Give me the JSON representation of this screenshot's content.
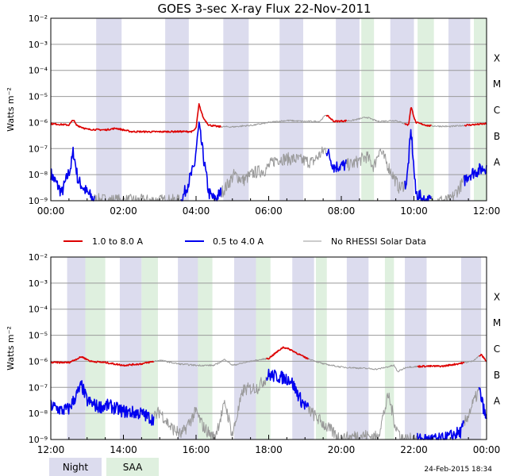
{
  "chart_data": {
    "type": "line",
    "title": "GOES 3-sec X-ray Flux   22-Nov-2011",
    "ylabel": "Watts m⁻²",
    "y_scale": "log",
    "ylim": [
      1e-09,
      0.01
    ],
    "y_ticks": [
      {
        "value": 0.01,
        "label": "10⁻²"
      },
      {
        "value": 0.001,
        "label": "10⁻³"
      },
      {
        "value": 0.0001,
        "label": "10⁻⁴"
      },
      {
        "value": 1e-05,
        "label": "10⁻⁵"
      },
      {
        "value": 1e-06,
        "label": "10⁻⁶"
      },
      {
        "value": 1e-07,
        "label": "10⁻⁷"
      },
      {
        "value": 1e-08,
        "label": "10⁻⁸"
      },
      {
        "value": 1e-09,
        "label": "10⁻⁹"
      }
    ],
    "flare_classes": [
      {
        "value": 0.0001,
        "label": "X"
      },
      {
        "value": 1e-05,
        "label": "M"
      },
      {
        "value": 1e-06,
        "label": "C"
      },
      {
        "value": 1e-07,
        "label": "B"
      },
      {
        "value": 1e-08,
        "label": "A"
      }
    ],
    "legend": [
      {
        "name": "1.0 to 8.0 A",
        "color": "#dd0000"
      },
      {
        "name": "0.5 to 4.0 A",
        "color": "#0000ee"
      },
      {
        "name": "No RHESSI Solar Data",
        "color": "#999999"
      }
    ],
    "shade_legend": [
      {
        "name": "Night",
        "color": "#dcdcee"
      },
      {
        "name": "SAA",
        "color": "#dff0df"
      }
    ],
    "timestamp": "24-Feb-2015 18:34",
    "panels": [
      {
        "xlim": [
          0,
          12
        ],
        "x_ticks": [
          "00:00",
          "02:00",
          "04:00",
          "06:00",
          "08:00",
          "10:00",
          "12:00"
        ],
        "night": [
          [
            1.25,
            1.95
          ],
          [
            3.15,
            3.8
          ],
          [
            4.75,
            5.45
          ],
          [
            6.3,
            6.95
          ],
          [
            7.85,
            8.5
          ],
          [
            9.35,
            10.0
          ],
          [
            10.95,
            11.55
          ]
        ],
        "saa": [
          [
            8.55,
            8.9
          ],
          [
            10.1,
            10.55
          ],
          [
            11.65,
            12.0
          ]
        ],
        "long_series": {
          "name": "1.0 to 8.0 A",
          "points": [
            [
              0,
              9e-07
            ],
            [
              0.5,
              8e-07
            ],
            [
              0.62,
              1.3e-06
            ],
            [
              0.7,
              8e-07
            ],
            [
              1.0,
              5.5e-07
            ],
            [
              1.5,
              5.2e-07
            ],
            [
              1.8,
              6e-07
            ],
            [
              2.2,
              4.5e-07
            ],
            [
              2.8,
              4.4e-07
            ],
            [
              3.4,
              4.5e-07
            ],
            [
              3.9,
              4.5e-07
            ],
            [
              4.0,
              6e-07
            ],
            [
              4.08,
              5e-06
            ],
            [
              4.2,
              1.5e-06
            ],
            [
              4.35,
              8e-07
            ],
            [
              4.6,
              7e-07
            ],
            [
              5.0,
              6.8e-07
            ],
            [
              5.6,
              8e-07
            ],
            [
              6.0,
              1e-06
            ],
            [
              6.5,
              1.2e-06
            ],
            [
              7.0,
              1.1e-06
            ],
            [
              7.4,
              1.1e-06
            ],
            [
              7.58,
              2e-06
            ],
            [
              7.8,
              1.1e-06
            ],
            [
              8.3,
              1.2e-06
            ],
            [
              8.7,
              1.6e-06
            ],
            [
              9.0,
              1.1e-06
            ],
            [
              9.5,
              1.2e-06
            ],
            [
              9.85,
              8e-07
            ],
            [
              9.92,
              4e-06
            ],
            [
              10.05,
              1e-06
            ],
            [
              10.4,
              7.5e-07
            ],
            [
              11.0,
              7e-07
            ],
            [
              11.5,
              8e-07
            ],
            [
              12.0,
              9e-07
            ]
          ],
          "gray_ranges": [
            [
              4.7,
              7.6
            ],
            [
              8.15,
              9.75
            ],
            [
              10.5,
              11.4
            ]
          ]
        },
        "short_series": {
          "name": "0.5 to 4.0 A",
          "points": [
            [
              0,
              1.1e-08
            ],
            [
              0.3,
              2e-09
            ],
            [
              0.55,
              2e-08
            ],
            [
              0.62,
              8e-08
            ],
            [
              0.75,
              6e-09
            ],
            [
              1.0,
              2e-09
            ],
            [
              1.2,
              1.1e-09
            ],
            [
              2.0,
              1e-09
            ],
            [
              3.6,
              1e-09
            ],
            [
              3.95,
              2e-08
            ],
            [
              4.08,
              8e-07
            ],
            [
              4.2,
              5e-08
            ],
            [
              4.35,
              2e-09
            ],
            [
              4.5,
              1.1e-09
            ],
            [
              4.8,
              3e-09
            ],
            [
              5.05,
              1e-08
            ],
            [
              5.3,
              6e-09
            ],
            [
              5.6,
              1.2e-08
            ],
            [
              5.9,
              1.5e-08
            ],
            [
              6.2,
              4e-08
            ],
            [
              6.7,
              4e-08
            ],
            [
              7.2,
              3e-08
            ],
            [
              7.58,
              1e-07
            ],
            [
              7.8,
              2e-08
            ],
            [
              8.3,
              2.5e-08
            ],
            [
              8.7,
              5e-08
            ],
            [
              8.9,
              2e-08
            ],
            [
              9.05,
              1e-07
            ],
            [
              9.3,
              2e-08
            ],
            [
              9.6,
              3e-09
            ],
            [
              9.8,
              5e-09
            ],
            [
              9.92,
              5e-07
            ],
            [
              10.05,
              2e-09
            ],
            [
              10.3,
              1e-09
            ],
            [
              11.0,
              1e-09
            ],
            [
              11.5,
              1e-08
            ],
            [
              12.0,
              2e-08
            ]
          ],
          "gray_ranges": [
            [
              1.2,
              3.6
            ],
            [
              4.7,
              7.6
            ],
            [
              8.15,
              9.75
            ],
            [
              10.5,
              11.4
            ]
          ]
        }
      },
      {
        "xlim": [
          12,
          24
        ],
        "x_ticks": [
          "12:00",
          "14:00",
          "16:00",
          "18:00",
          "20:00",
          "22:00",
          "00:00"
        ],
        "night": [
          [
            12.45,
            13.05
          ],
          [
            13.9,
            14.5
          ],
          [
            15.5,
            16.1
          ],
          [
            17.05,
            17.65
          ],
          [
            18.65,
            19.25
          ],
          [
            20.15,
            20.75
          ],
          [
            21.75,
            22.35
          ],
          [
            23.3,
            23.85
          ]
        ],
        "saa": [
          [
            12.95,
            13.5
          ],
          [
            14.5,
            14.95
          ],
          [
            16.05,
            16.45
          ],
          [
            17.65,
            18.05
          ],
          [
            19.3,
            19.6
          ],
          [
            21.2,
            21.45
          ]
        ],
        "long_series": {
          "name": "1.0 to 8.0 A",
          "points": [
            [
              12,
              9e-07
            ],
            [
              12.5,
              9e-07
            ],
            [
              12.85,
              1.5e-06
            ],
            [
              13.1,
              1e-06
            ],
            [
              13.5,
              9e-07
            ],
            [
              14.0,
              7e-07
            ],
            [
              14.5,
              8e-07
            ],
            [
              15.0,
              1.1e-06
            ],
            [
              15.5,
              8e-07
            ],
            [
              16.0,
              7e-07
            ],
            [
              16.5,
              7e-07
            ],
            [
              16.8,
              1.2e-06
            ],
            [
              17.0,
              7e-07
            ],
            [
              17.5,
              1e-06
            ],
            [
              18.0,
              1.3e-06
            ],
            [
              18.4,
              3.5e-06
            ],
            [
              18.6,
              2.8e-06
            ],
            [
              19.0,
              1.4e-06
            ],
            [
              19.5,
              8e-07
            ],
            [
              20.0,
              6e-07
            ],
            [
              20.5,
              5.5e-07
            ],
            [
              21.0,
              5e-07
            ],
            [
              21.45,
              7e-07
            ],
            [
              21.55,
              4e-07
            ],
            [
              21.8,
              6e-07
            ],
            [
              22.3,
              6.5e-07
            ],
            [
              22.8,
              6.5e-07
            ],
            [
              23.2,
              8e-07
            ],
            [
              23.6,
              1e-06
            ],
            [
              23.85,
              1.8e-06
            ],
            [
              24.0,
              1e-06
            ]
          ],
          "gray_ranges": [
            [
              14.85,
              17.95
            ],
            [
              19.1,
              22.1
            ],
            [
              23.4,
              23.8
            ]
          ]
        },
        "short_series": {
          "name": "0.5 to 4.0 A",
          "points": [
            [
              12,
              2e-08
            ],
            [
              12.3,
              1.3e-08
            ],
            [
              12.5,
              1.5e-08
            ],
            [
              12.85,
              1.2e-07
            ],
            [
              13.0,
              3e-08
            ],
            [
              13.3,
              1.8e-08
            ],
            [
              13.6,
              2e-08
            ],
            [
              14.0,
              1.2e-08
            ],
            [
              14.5,
              1e-08
            ],
            [
              14.8,
              6e-09
            ],
            [
              15.0,
              1.2e-08
            ],
            [
              15.3,
              3e-09
            ],
            [
              15.6,
              1.5e-09
            ],
            [
              16.0,
              1.2e-08
            ],
            [
              16.2,
              3e-09
            ],
            [
              16.5,
              1.1e-09
            ],
            [
              16.8,
              2.5e-08
            ],
            [
              17.0,
              1.5e-09
            ],
            [
              17.3,
              8e-08
            ],
            [
              17.7,
              1e-07
            ],
            [
              18.0,
              3e-07
            ],
            [
              18.3,
              2.5e-07
            ],
            [
              18.6,
              2e-07
            ],
            [
              18.9,
              3e-08
            ],
            [
              19.2,
              1e-08
            ],
            [
              19.6,
              3e-09
            ],
            [
              20.0,
              1e-09
            ],
            [
              20.5,
              1.5e-09
            ],
            [
              21.0,
              1.2e-09
            ],
            [
              21.3,
              5e-08
            ],
            [
              21.5,
              3e-09
            ],
            [
              21.7,
              1e-09
            ],
            [
              22.2,
              1e-09
            ],
            [
              22.8,
              1e-09
            ],
            [
              23.3,
              2e-09
            ],
            [
              23.6,
              2e-08
            ],
            [
              23.8,
              8e-08
            ],
            [
              24.0,
              5e-09
            ]
          ],
          "gray_ranges": [
            [
              14.85,
              17.95
            ],
            [
              19.1,
              22.1
            ],
            [
              23.4,
              23.8
            ]
          ]
        }
      }
    ]
  }
}
